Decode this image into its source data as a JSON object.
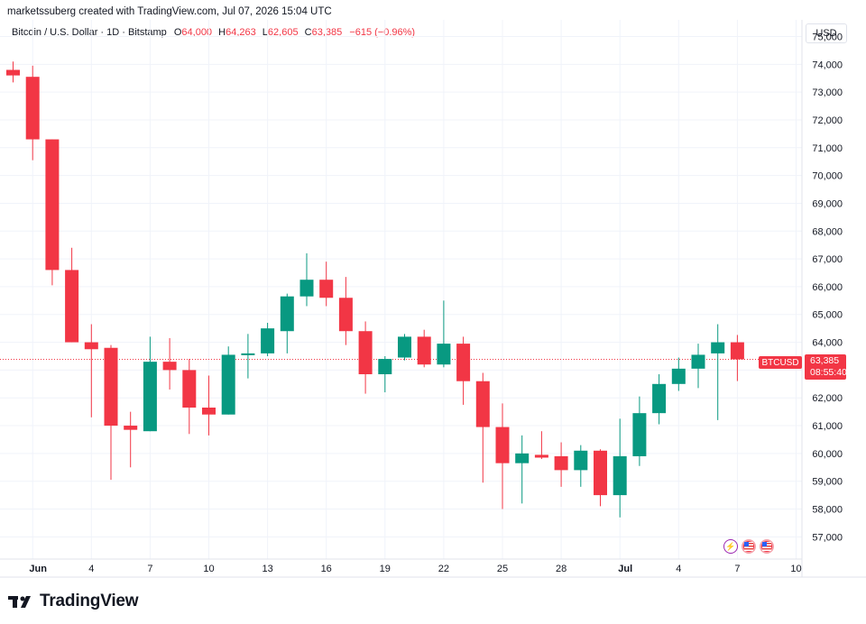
{
  "credit": "marketssuberg created with TradingView.com, Jul 07, 2026 15:04 UTC",
  "legend": {
    "symbol": "Bitcoin / U.S. Dollar · 1D · Bitstamp",
    "o_label": "O",
    "o_value": "64,000",
    "h_label": "H",
    "h_value": "64,263",
    "l_label": "L",
    "l_value": "62,605",
    "c_label": "C",
    "c_value": "63,385",
    "change": "−615 (−0.96%)"
  },
  "currency": "USD",
  "price_tag": {
    "symbol": "BTCUSD",
    "price": "63,385",
    "countdown": "08:55:40"
  },
  "logo_text": "TradingView",
  "colors": {
    "up": "#089981",
    "down": "#f23645",
    "grid": "#f0f3fa",
    "text": "#131722"
  },
  "chart_data": {
    "type": "candlestick",
    "title": "",
    "xlabel": "",
    "ylabel": "",
    "ylim": [
      56200,
      75600
    ],
    "grid": true,
    "current_price": 63385,
    "y_ticks": [
      57000,
      58000,
      59000,
      60000,
      61000,
      62000,
      63000,
      64000,
      65000,
      66000,
      67000,
      68000,
      69000,
      70000,
      71000,
      72000,
      73000,
      74000,
      75000
    ],
    "y_tick_labels": [
      "57,000",
      "58,000",
      "59,000",
      "60,000",
      "61,000",
      "62,000",
      "63,000",
      "64,000",
      "65,000",
      "66,000",
      "67,000",
      "68,000",
      "69,000",
      "70,000",
      "71,000",
      "72,000",
      "73,000",
      "74,000",
      "75,000"
    ],
    "x_tick_labels": [
      {
        "day": 1,
        "label": "Jun"
      },
      {
        "day": 4,
        "label": "4"
      },
      {
        "day": 7,
        "label": "7"
      },
      {
        "day": 10,
        "label": "10"
      },
      {
        "day": 13,
        "label": "13"
      },
      {
        "day": 16,
        "label": "16"
      },
      {
        "day": 19,
        "label": "19"
      },
      {
        "day": 22,
        "label": "22"
      },
      {
        "day": 25,
        "label": "25"
      },
      {
        "day": 28,
        "label": "28"
      },
      {
        "day": 31,
        "label": "Jul"
      },
      {
        "day": 34,
        "label": "4"
      },
      {
        "day": 37,
        "label": "7"
      },
      {
        "day": 40,
        "label": "10"
      }
    ],
    "candles": [
      {
        "date": "2026-05-31",
        "o": 73800,
        "h": 74100,
        "l": 73350,
        "c": 73600
      },
      {
        "date": "2026-06-01",
        "o": 73550,
        "h": 73950,
        "l": 70550,
        "c": 71300
      },
      {
        "date": "2026-06-02",
        "o": 71300,
        "h": 71300,
        "l": 66050,
        "c": 66600
      },
      {
        "date": "2026-06-03",
        "o": 66600,
        "h": 67400,
        "l": 64000,
        "c": 64000
      },
      {
        "date": "2026-06-04",
        "o": 64000,
        "h": 64650,
        "l": 61300,
        "c": 63750
      },
      {
        "date": "2026-06-05",
        "o": 63800,
        "h": 63900,
        "l": 59050,
        "c": 61000
      },
      {
        "date": "2026-06-06",
        "o": 61000,
        "h": 61500,
        "l": 59500,
        "c": 60850
      },
      {
        "date": "2026-06-07",
        "o": 60800,
        "h": 64200,
        "l": 60800,
        "c": 63300
      },
      {
        "date": "2026-06-08",
        "o": 63300,
        "h": 64150,
        "l": 62300,
        "c": 63000
      },
      {
        "date": "2026-06-09",
        "o": 63000,
        "h": 63400,
        "l": 60700,
        "c": 61650
      },
      {
        "date": "2026-06-10",
        "o": 61650,
        "h": 62800,
        "l": 60650,
        "c": 61400
      },
      {
        "date": "2026-06-11",
        "o": 61400,
        "h": 63850,
        "l": 61400,
        "c": 63550
      },
      {
        "date": "2026-06-12",
        "o": 63550,
        "h": 64300,
        "l": 62700,
        "c": 63600
      },
      {
        "date": "2026-06-13",
        "o": 63600,
        "h": 64700,
        "l": 63500,
        "c": 64500
      },
      {
        "date": "2026-06-14",
        "o": 64400,
        "h": 65750,
        "l": 63600,
        "c": 65650
      },
      {
        "date": "2026-06-15",
        "o": 65650,
        "h": 67200,
        "l": 65300,
        "c": 66250
      },
      {
        "date": "2026-06-16",
        "o": 66250,
        "h": 66900,
        "l": 65300,
        "c": 65600
      },
      {
        "date": "2026-06-17",
        "o": 65600,
        "h": 66350,
        "l": 63900,
        "c": 64400
      },
      {
        "date": "2026-06-18",
        "o": 64400,
        "h": 64750,
        "l": 62150,
        "c": 62850
      },
      {
        "date": "2026-06-19",
        "o": 62850,
        "h": 63500,
        "l": 62200,
        "c": 63400
      },
      {
        "date": "2026-06-20",
        "o": 63450,
        "h": 64300,
        "l": 63350,
        "c": 64200
      },
      {
        "date": "2026-06-21",
        "o": 64200,
        "h": 64450,
        "l": 63100,
        "c": 63200
      },
      {
        "date": "2026-06-22",
        "o": 63200,
        "h": 65500,
        "l": 63100,
        "c": 63950
      },
      {
        "date": "2026-06-23",
        "o": 63950,
        "h": 64200,
        "l": 61750,
        "c": 62600
      },
      {
        "date": "2026-06-24",
        "o": 62600,
        "h": 62900,
        "l": 58950,
        "c": 60950
      },
      {
        "date": "2026-06-25",
        "o": 60950,
        "h": 61800,
        "l": 58000,
        "c": 59650
      },
      {
        "date": "2026-06-26",
        "o": 59650,
        "h": 60650,
        "l": 58200,
        "c": 60000
      },
      {
        "date": "2026-06-27",
        "o": 59950,
        "h": 60800,
        "l": 59800,
        "c": 59850
      },
      {
        "date": "2026-06-28",
        "o": 59900,
        "h": 60400,
        "l": 58800,
        "c": 59400
      },
      {
        "date": "2026-06-29",
        "o": 59400,
        "h": 60300,
        "l": 58800,
        "c": 60100
      },
      {
        "date": "2026-06-30",
        "o": 60100,
        "h": 60150,
        "l": 58100,
        "c": 58500
      },
      {
        "date": "2026-07-01",
        "o": 58500,
        "h": 61250,
        "l": 57700,
        "c": 59900
      },
      {
        "date": "2026-07-02",
        "o": 59900,
        "h": 62050,
        "l": 59550,
        "c": 61450
      },
      {
        "date": "2026-07-03",
        "o": 61450,
        "h": 62850,
        "l": 61050,
        "c": 62500
      },
      {
        "date": "2026-07-04",
        "o": 62500,
        "h": 63450,
        "l": 62250,
        "c": 63050
      },
      {
        "date": "2026-07-05",
        "o": 63050,
        "h": 63950,
        "l": 62350,
        "c": 63550
      },
      {
        "date": "2026-07-06",
        "o": 63600,
        "h": 64650,
        "l": 61200,
        "c": 64000
      },
      {
        "date": "2026-07-07",
        "o": 64000,
        "h": 64263,
        "l": 62605,
        "c": 63385
      }
    ]
  }
}
